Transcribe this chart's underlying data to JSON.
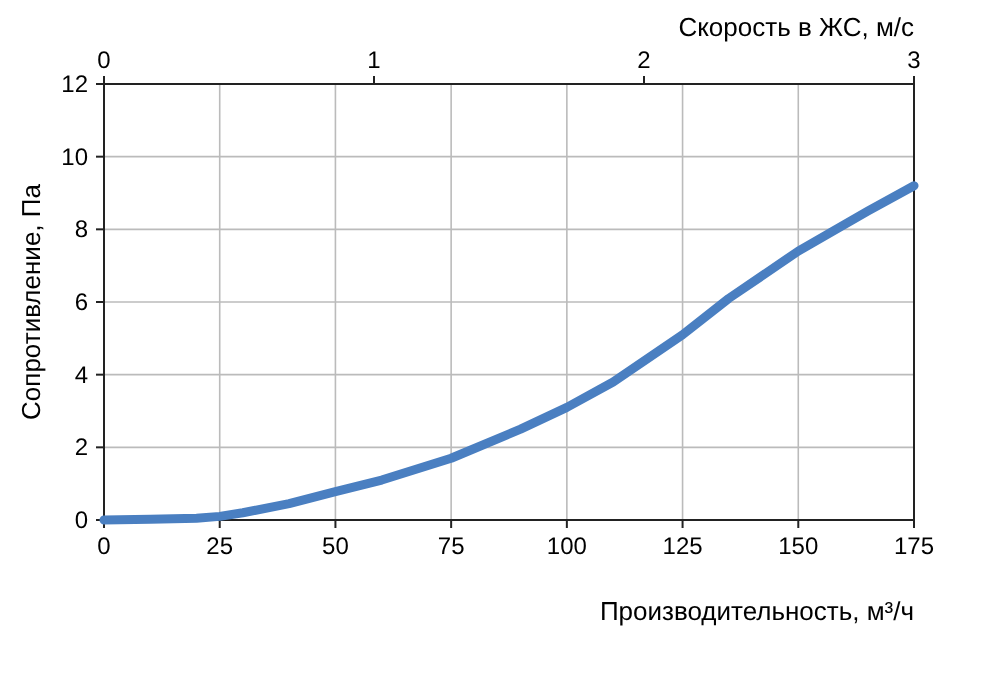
{
  "chart_data": {
    "type": "line",
    "xlabel": "Производительность, м³/ч",
    "ylabel": "Сопротивление, Па",
    "x2label": "Скорость в ЖС, м/с",
    "x": [
      0,
      10,
      20,
      25,
      30,
      40,
      50,
      60,
      75,
      90,
      100,
      110,
      125,
      135,
      150,
      165,
      175
    ],
    "series": [
      {
        "color": "#4a7fc1",
        "values": [
          0,
          0.02,
          0.05,
          0.1,
          0.2,
          0.45,
          0.78,
          1.1,
          1.7,
          2.5,
          3.1,
          3.8,
          5.1,
          6.1,
          7.4,
          8.5,
          9.2
        ]
      }
    ],
    "xlim": [
      0,
      175
    ],
    "xticks": [
      0,
      25,
      50,
      75,
      100,
      125,
      150,
      175
    ],
    "ylim": [
      0,
      12
    ],
    "yticks": [
      0,
      2,
      4,
      6,
      8,
      10,
      12
    ],
    "x2lim": [
      0,
      3
    ],
    "x2ticks": [
      0,
      1,
      2,
      3
    ],
    "grid": true,
    "marker": "none",
    "line_style": "solid"
  }
}
